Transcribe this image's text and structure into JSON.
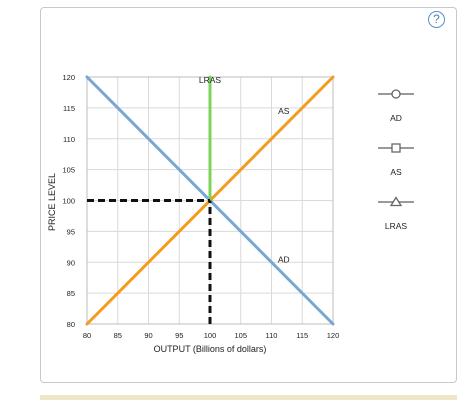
{
  "help": {
    "label": "?"
  },
  "chart_data": {
    "type": "line",
    "xlabel": "OUTPUT (Billions of dollars)",
    "ylabel": "PRICE LEVEL",
    "xlim": [
      80,
      120
    ],
    "ylim": [
      80,
      120
    ],
    "x_ticks": [
      80,
      85,
      90,
      95,
      100,
      105,
      110,
      115,
      120
    ],
    "y_ticks": [
      80,
      85,
      90,
      95,
      100,
      105,
      110,
      115,
      120
    ],
    "grid": true,
    "series": [
      {
        "name": "AD",
        "color": "#7aa7d2",
        "points": [
          [
            80,
            120
          ],
          [
            120,
            80
          ]
        ]
      },
      {
        "name": "AS",
        "color": "#f39c1f",
        "points": [
          [
            80,
            80
          ],
          [
            120,
            120
          ]
        ]
      },
      {
        "name": "LRAS",
        "color": "#7cd35a",
        "points": [
          [
            100,
            100
          ],
          [
            100,
            120
          ]
        ]
      }
    ],
    "guide_lines": [
      {
        "from": [
          80,
          100
        ],
        "to": [
          100,
          100
        ],
        "style": "dashed",
        "color": "#111111"
      },
      {
        "from": [
          100,
          80
        ],
        "to": [
          100,
          100
        ],
        "style": "dashed",
        "color": "#111111"
      }
    ],
    "equilibrium": [
      100,
      100
    ],
    "curve_labels": [
      {
        "text": "LRAS",
        "at": [
          100,
          119
        ]
      },
      {
        "text": "AS",
        "at": [
          112,
          114
        ]
      },
      {
        "text": "AD",
        "at": [
          112,
          90
        ]
      }
    ],
    "legend": {
      "placement": "right",
      "items": [
        {
          "label": "AD",
          "marker": "circle",
          "color": "#7aa7d2"
        },
        {
          "label": "AS",
          "marker": "square",
          "color": "#f39c1f"
        },
        {
          "label": "LRAS",
          "marker": "triangle",
          "color": "#7cd35a"
        }
      ]
    }
  }
}
